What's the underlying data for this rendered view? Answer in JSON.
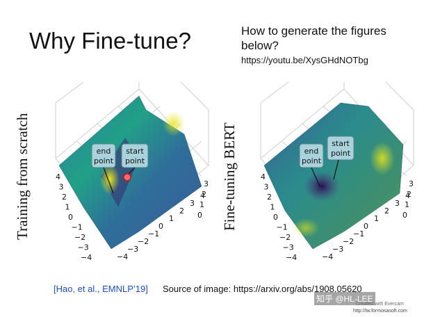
{
  "slide": {
    "title": "Why Fine-tune?",
    "howto_line1": "How to generate the figures",
    "howto_line2": "below?",
    "howto_url": "https://youtu.be/XysGHdNOTbg",
    "citation": "[Hao, et al., EMNLP’19]",
    "source": "Source of image: https://arxiv.org/abs/1908.05620"
  },
  "plots": [
    {
      "label": "Training from scratch",
      "annotations": {
        "end": "end\npoint",
        "start": "start\npoint"
      },
      "ticks_a": [
        "4",
        "3",
        "2",
        "1",
        "0",
        "−1",
        "−2",
        "−3",
        "−4"
      ],
      "ticks_b": [
        "−4",
        "−3",
        "−2",
        "−1",
        "0",
        "1",
        "2",
        "3",
        "4"
      ],
      "ticks_c": [
        "3",
        "2",
        "1",
        "0"
      ]
    },
    {
      "label": "Fine-tuning BERT",
      "annotations": {
        "end": "end\npoint",
        "start": "start\npoint"
      },
      "ticks_a": [
        "4",
        "3",
        "2",
        "1",
        "0",
        "−1",
        "−2",
        "−3",
        "−4"
      ],
      "ticks_b": [
        "−4",
        "−3",
        "−2",
        "−1",
        "0",
        "1",
        "2",
        "3",
        "4"
      ],
      "ticks_c": [
        "3",
        "2",
        "1",
        "0"
      ]
    }
  ],
  "watermark": {
    "main": "知乎 @HL-LEE",
    "sub": "Created with Evercam",
    "url": "http://tw.formosasoft.com"
  },
  "colors": {
    "surface_dark": "#3b1f6b",
    "surface_mid": "#2a8c8c",
    "surface_light": "#d9e021",
    "citation": "#1f4fbf"
  }
}
